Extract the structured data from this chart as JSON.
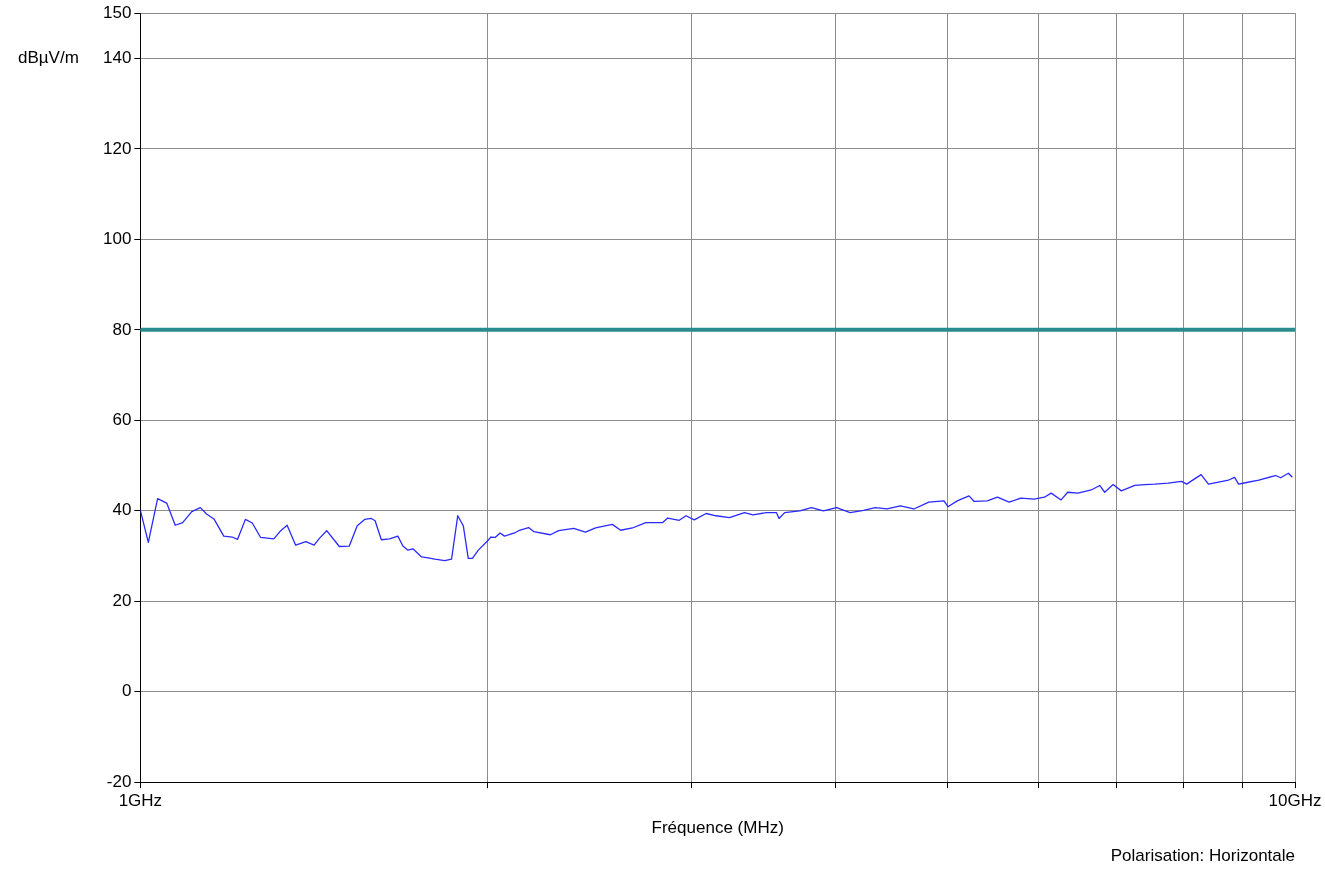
{
  "chart_data": {
    "type": "line",
    "xlabel": "Fréquence (MHz)",
    "ylabel": "dBµV/m",
    "annotations": [
      "Polarisation: Horizontale"
    ],
    "log": "x",
    "grid": true,
    "legend": false,
    "marker": "none",
    "line_style": "solid",
    "xlim": [
      1,
      10
    ],
    "xticks": [
      {
        "value": 1,
        "label": "1GHz"
      },
      {
        "value": 2,
        "label": null
      },
      {
        "value": 3,
        "label": null
      },
      {
        "value": 4,
        "label": null
      },
      {
        "value": 5,
        "label": null
      },
      {
        "value": 6,
        "label": null
      },
      {
        "value": 7,
        "label": null
      },
      {
        "value": 8,
        "label": null
      },
      {
        "value": 9,
        "label": null
      },
      {
        "value": 10,
        "label": "10GHz"
      }
    ],
    "ylim": [
      -20,
      150
    ],
    "yticks": [
      -20,
      0,
      20,
      40,
      60,
      80,
      100,
      120,
      140,
      150
    ],
    "ref_lines": [
      {
        "axis": "y",
        "value": 80,
        "color": "#2a8c8c"
      }
    ],
    "x": [
      1.0,
      1.016,
      1.035,
      1.054,
      1.072,
      1.088,
      1.108,
      1.127,
      1.141,
      1.158,
      1.181,
      1.201,
      1.214,
      1.233,
      1.25,
      1.271,
      1.305,
      1.323,
      1.34,
      1.363,
      1.391,
      1.414,
      1.429,
      1.45,
      1.487,
      1.517,
      1.541,
      1.564,
      1.585,
      1.597,
      1.617,
      1.644,
      1.671,
      1.688,
      1.705,
      1.722,
      1.752,
      1.775,
      1.799,
      1.835,
      1.86,
      1.883,
      1.904,
      1.923,
      1.939,
      1.962,
      2.001,
      2.012,
      2.029,
      2.049,
      2.067,
      2.109,
      2.126,
      2.169,
      2.191,
      2.265,
      2.303,
      2.373,
      2.429,
      2.479,
      2.563,
      2.606,
      2.668,
      2.74,
      2.834,
      2.862,
      2.929,
      2.969,
      3.018,
      3.09,
      3.152,
      3.237,
      3.336,
      3.393,
      3.484,
      3.555,
      3.574,
      3.614,
      3.725,
      3.813,
      3.904,
      4.009,
      4.118,
      4.23,
      4.33,
      4.433,
      4.552,
      4.676,
      4.818,
      4.966,
      5.005,
      5.099,
      5.22,
      5.272,
      5.414,
      5.524,
      5.655,
      5.788,
      5.945,
      6.067,
      6.149,
      6.272,
      6.355,
      6.486,
      6.661,
      6.774,
      6.842,
      6.957,
      7.073,
      7.265,
      7.412,
      7.561,
      7.765,
      7.975,
      8.056,
      8.292,
      8.415,
      8.76,
      8.865,
      8.937,
      9.057,
      9.305,
      9.621,
      9.718,
      9.868,
      9.947
    ],
    "series": [
      {
        "color": "#2a2aff",
        "values": [
          40.1,
          33.0,
          42.7,
          41.7,
          36.8,
          37.4,
          39.8,
          40.7,
          39.3,
          38.2,
          34.4,
          34.2,
          33.7,
          38.1,
          37.3,
          34.1,
          33.8,
          35.6,
          36.8,
          32.4,
          33.2,
          32.4,
          33.9,
          35.6,
          32.1,
          32.2,
          36.7,
          38.1,
          38.3,
          37.8,
          33.6,
          33.8,
          34.4,
          32.2,
          31.3,
          31.6,
          29.8,
          29.6,
          29.3,
          29.0,
          29.3,
          38.9,
          36.7,
          29.5,
          29.5,
          31.3,
          33.5,
          34.2,
          34.1,
          35.1,
          34.4,
          35.1,
          35.6,
          36.3,
          35.4,
          34.7,
          35.6,
          36.1,
          35.3,
          36.2,
          37.0,
          35.7,
          36.2,
          37.4,
          37.4,
          38.4,
          37.9,
          38.9,
          38.0,
          39.4,
          38.9,
          38.5,
          39.6,
          39.1,
          39.6,
          39.6,
          38.3,
          39.6,
          40.0,
          40.7,
          40.0,
          40.7,
          39.6,
          40.1,
          40.7,
          40.4,
          41.1,
          40.4,
          41.9,
          42.2,
          40.9,
          42.2,
          43.3,
          42.1,
          42.2,
          43.0,
          41.9,
          42.8,
          42.6,
          43.0,
          43.9,
          42.4,
          44.1,
          43.9,
          44.6,
          45.6,
          44.1,
          45.8,
          44.4,
          45.6,
          45.8,
          45.9,
          46.1,
          46.5,
          45.9,
          48.0,
          45.9,
          46.8,
          47.4,
          45.9,
          46.2,
          46.8,
          47.8,
          47.3,
          48.3,
          47.4
        ]
      }
    ]
  }
}
